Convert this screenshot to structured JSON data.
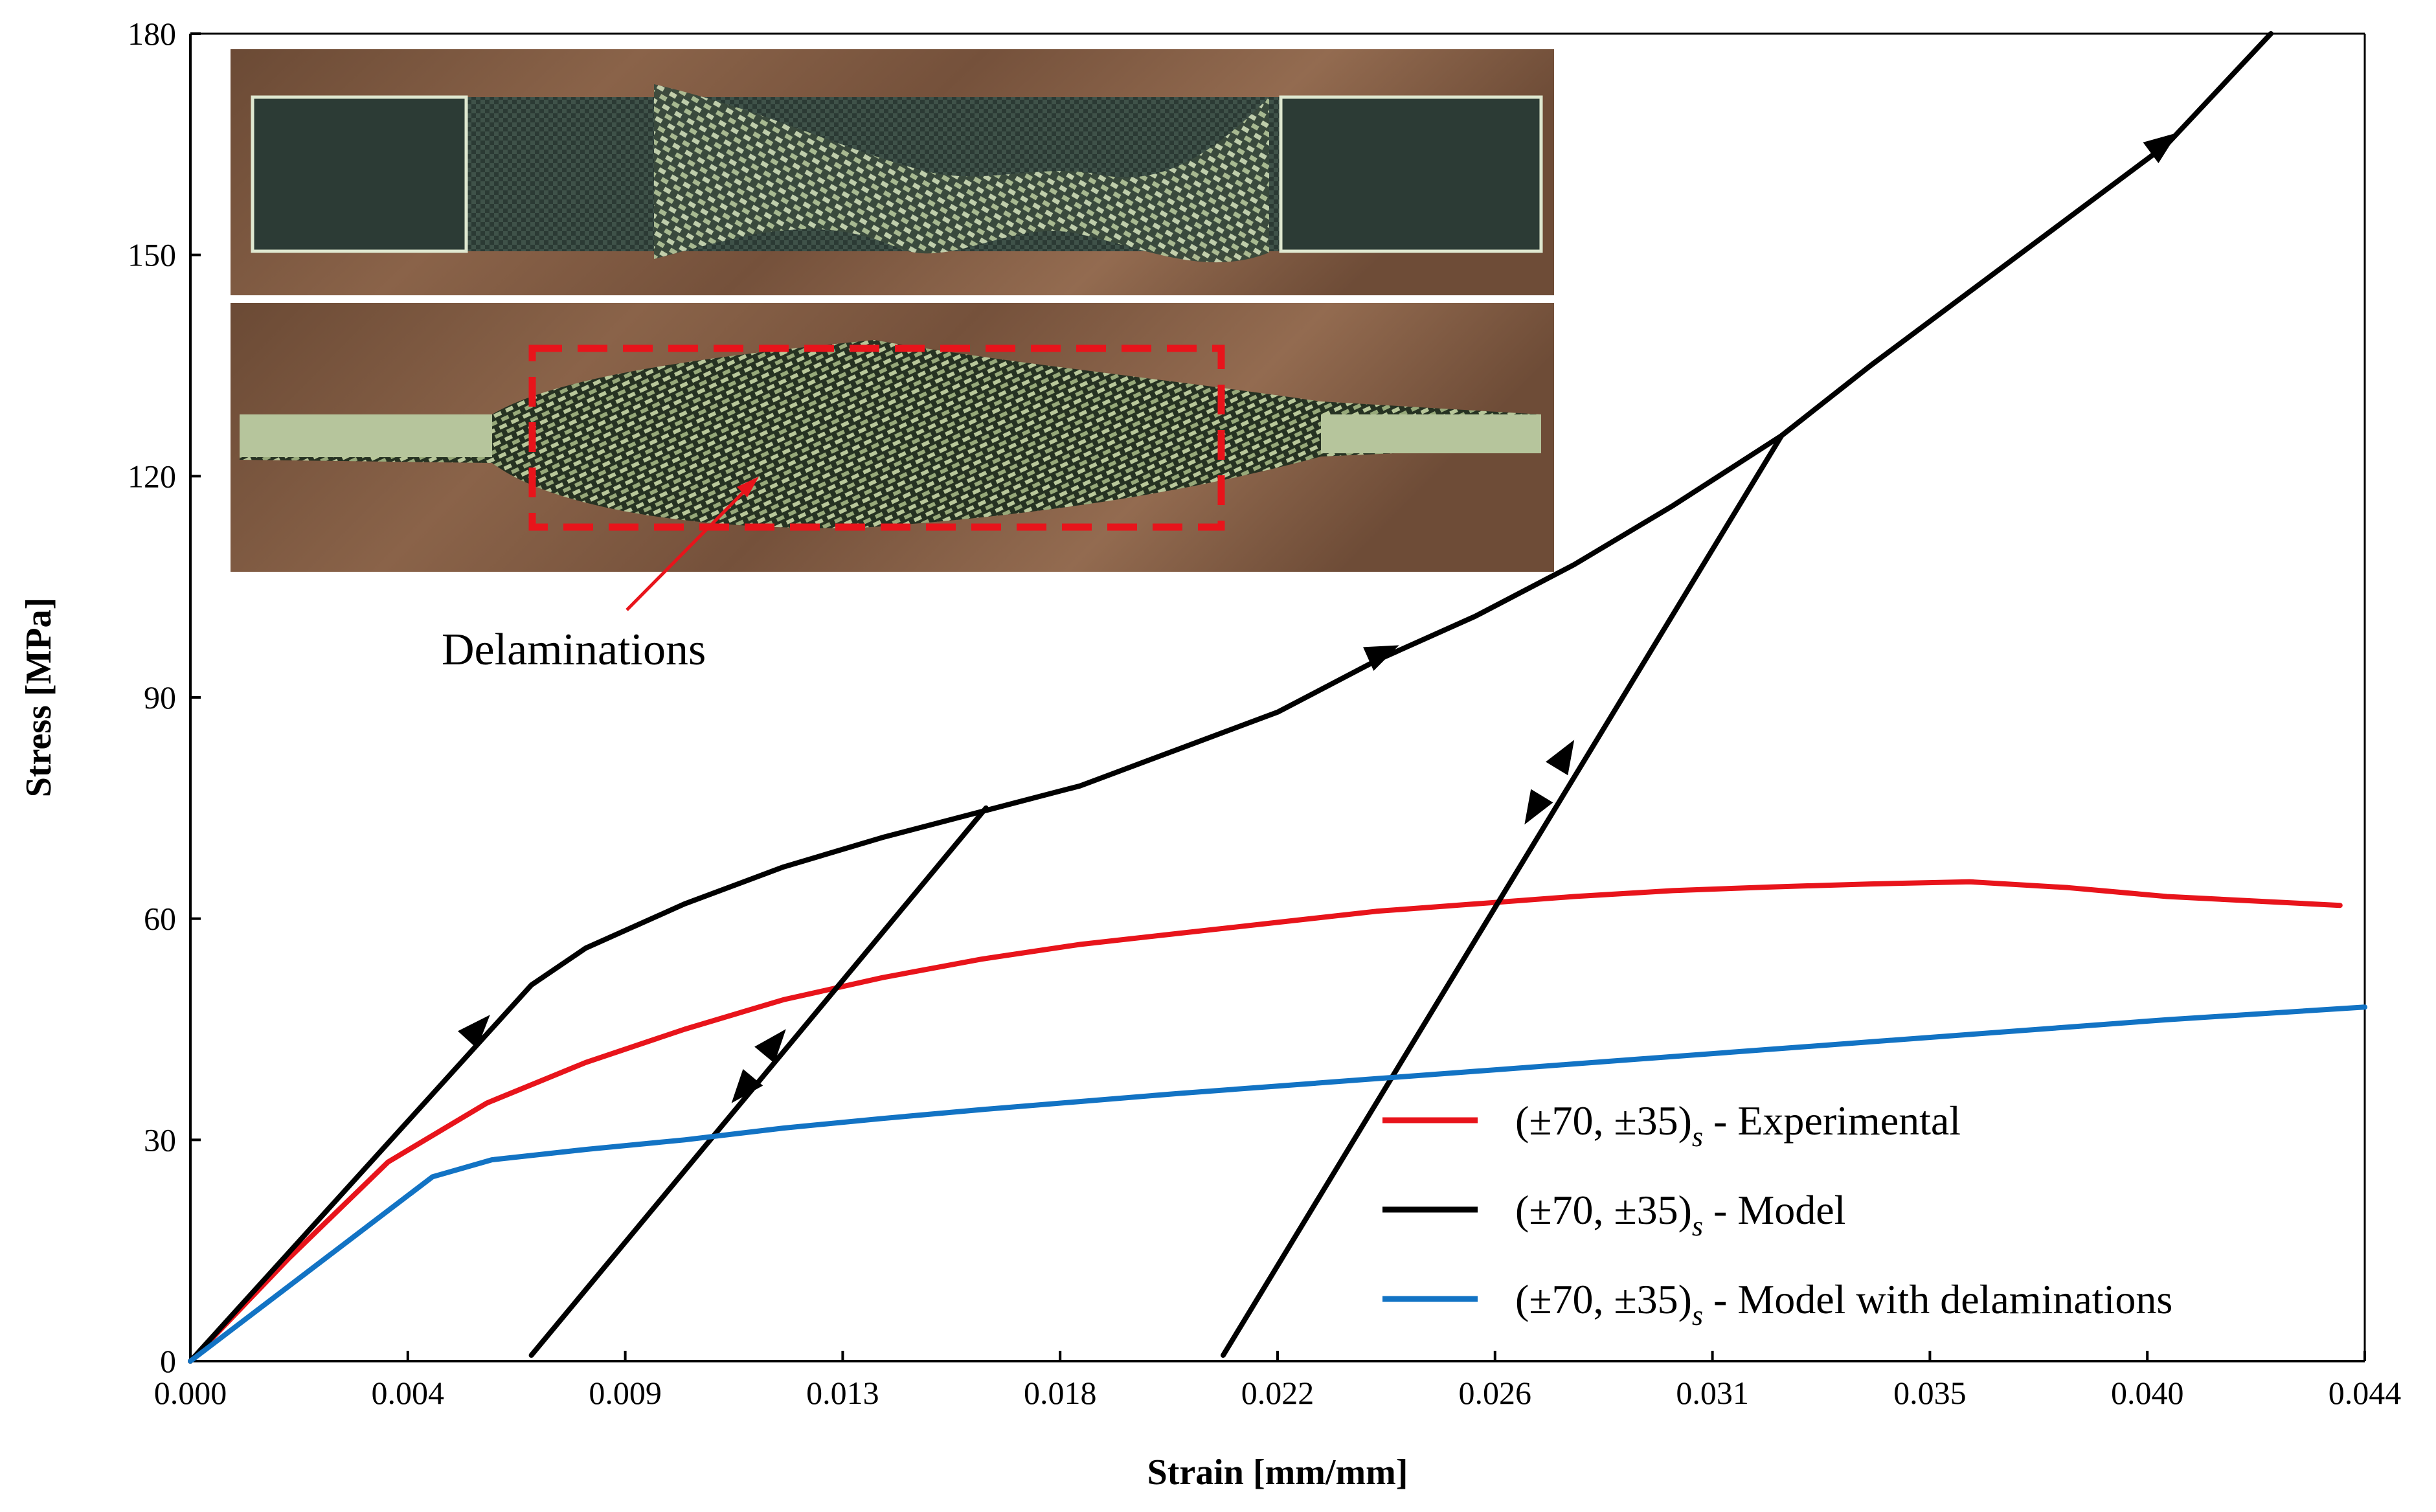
{
  "chart_data": {
    "type": "line",
    "xlabel": "Strain [mm/mm]",
    "ylabel": "Stress [MPa]",
    "xlim": [
      0,
      0.044
    ],
    "ylim": [
      0,
      180
    ],
    "x_ticks": [
      "0.000",
      "0.004",
      "0.009",
      "0.013",
      "0.018",
      "0.022",
      "0.026",
      "0.031",
      "0.035",
      "0.040",
      "0.044"
    ],
    "y_ticks": [
      "0",
      "30",
      "60",
      "90",
      "120",
      "150",
      "180"
    ],
    "grid": false,
    "legend_position": "bottom-right",
    "series": [
      {
        "name": "(±70, ±35)s - Experimental",
        "legend_main": "(±70, ±35)",
        "legend_sub": "s",
        "legend_tail": " - Experimental",
        "color": "#e8141b",
        "points": [
          [
            0,
            0
          ],
          [
            0.002,
            14
          ],
          [
            0.004,
            27
          ],
          [
            0.006,
            35
          ],
          [
            0.008,
            40.5
          ],
          [
            0.01,
            45
          ],
          [
            0.012,
            49
          ],
          [
            0.014,
            52
          ],
          [
            0.016,
            54.5
          ],
          [
            0.018,
            56.5
          ],
          [
            0.02,
            58
          ],
          [
            0.022,
            59.5
          ],
          [
            0.024,
            61
          ],
          [
            0.026,
            62
          ],
          [
            0.028,
            63
          ],
          [
            0.03,
            63.8
          ],
          [
            0.032,
            64.3
          ],
          [
            0.034,
            64.7
          ],
          [
            0.036,
            65
          ],
          [
            0.038,
            64.2
          ],
          [
            0.04,
            63
          ],
          [
            0.0435,
            61.8
          ]
        ]
      },
      {
        "name": "(±70, ±35)s - Model",
        "legend_main": "(±70, ±35)",
        "legend_sub": "s",
        "legend_tail": " - Model",
        "color": "#000000",
        "points": [
          [
            0,
            0
          ],
          [
            0.0069,
            51
          ],
          [
            0.008,
            56
          ],
          [
            0.01,
            62
          ],
          [
            0.012,
            67
          ],
          [
            0.014,
            71
          ],
          [
            0.016,
            74.5
          ],
          [
            0.018,
            78
          ],
          [
            0.02,
            83
          ],
          [
            0.022,
            88
          ],
          [
            0.024,
            95
          ],
          [
            0.026,
            101
          ],
          [
            0.028,
            108
          ],
          [
            0.03,
            116
          ],
          [
            0.0322,
            125.5
          ],
          [
            0.034,
            135
          ],
          [
            0.036,
            145
          ],
          [
            0.038,
            155
          ],
          [
            0.04,
            165
          ],
          [
            0.0421,
            180
          ]
        ],
        "unload_reload": [
          [
            [
              0.0069,
              0.8
            ],
            [
              0.0161,
              75
            ]
          ],
          [
            [
              0.0209,
              0.8
            ],
            [
              0.0322,
              125.5
            ]
          ]
        ],
        "arrows": [
          {
            "at": [
              0.0058,
              45
            ],
            "direction": "up"
          },
          {
            "at": [
              0.0241,
              96
            ],
            "direction": "up"
          },
          {
            "at": [
              0.0399,
              165
            ],
            "direction": "up"
          },
          {
            "at": [
              0.0112,
              37
            ],
            "direction": "down"
          },
          {
            "at": [
              0.0118,
              43
            ],
            "direction": "up"
          },
          {
            "at": [
              0.0278,
              82
            ],
            "direction": "up"
          },
          {
            "at": [
              0.0272,
              75
            ],
            "direction": "down"
          }
        ]
      },
      {
        "name": "(±70, ±35)s - Model with delaminations",
        "legend_main": "(±70, ±35)",
        "legend_sub": "s",
        "legend_tail": " - Model with delaminations",
        "color": "#1273c4",
        "points": [
          [
            0,
            0
          ],
          [
            0.0049,
            25
          ],
          [
            0.0061,
            27.3
          ],
          [
            0.008,
            28.7
          ],
          [
            0.01,
            30
          ],
          [
            0.012,
            31.6
          ],
          [
            0.014,
            32.9
          ],
          [
            0.016,
            34.1
          ],
          [
            0.018,
            35.2
          ],
          [
            0.02,
            36.3
          ],
          [
            0.022,
            37.3
          ],
          [
            0.024,
            38.3
          ],
          [
            0.026,
            39.3
          ],
          [
            0.028,
            40.3
          ],
          [
            0.03,
            41.3
          ],
          [
            0.032,
            42.3
          ],
          [
            0.034,
            43.3
          ],
          [
            0.036,
            44.3
          ],
          [
            0.038,
            45.3
          ],
          [
            0.04,
            46.3
          ],
          [
            0.044,
            48
          ]
        ]
      }
    ],
    "annotations": [
      {
        "text": "Delaminations",
        "color": "#e8141b"
      }
    ]
  }
}
